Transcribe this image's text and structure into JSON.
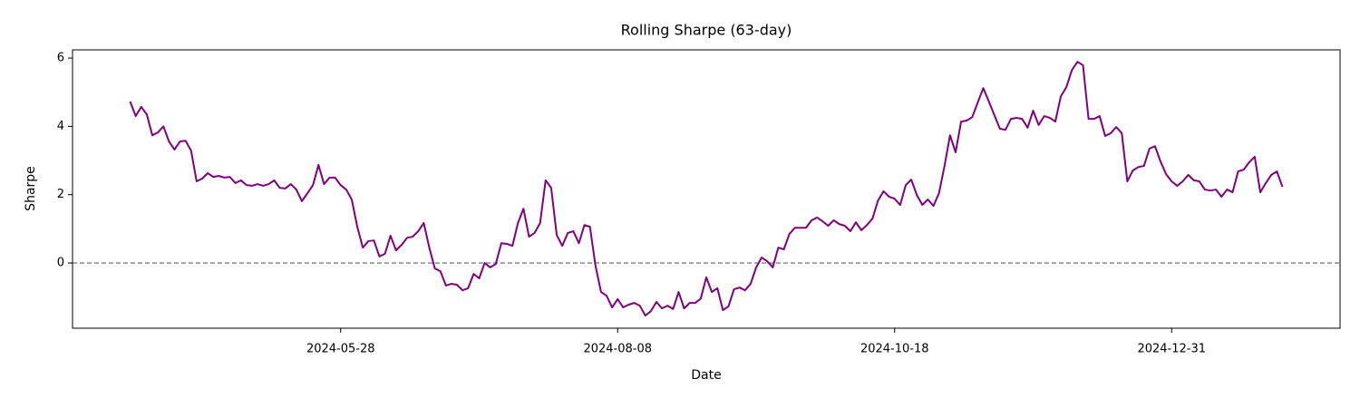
{
  "chart_data": {
    "type": "line",
    "title": "Rolling Sharpe (63-day)",
    "x_label": "Date",
    "y_label": "Sharpe",
    "categories": [
      null,
      null,
      null,
      null,
      null,
      null,
      null,
      null,
      null,
      null,
      null,
      null,
      null,
      null,
      null,
      null,
      null,
      null,
      null,
      null,
      null,
      null,
      null,
      null,
      null,
      null,
      null,
      null,
      null,
      null,
      null,
      null,
      null,
      null,
      null,
      null,
      null,
      null,
      "2024-05-28",
      null,
      null,
      null,
      null,
      null,
      null,
      null,
      null,
      null,
      null,
      null,
      null,
      null,
      null,
      null,
      null,
      null,
      null,
      null,
      null,
      null,
      null,
      null,
      null,
      null,
      null,
      null,
      null,
      null,
      null,
      null,
      null,
      null,
      null,
      null,
      null,
      null,
      null,
      null,
      null,
      null,
      null,
      null,
      null,
      null,
      null,
      null,
      null,
      null,
      "2024-08-08",
      null,
      null,
      null,
      null,
      null,
      null,
      null,
      null,
      null,
      null,
      null,
      null,
      null,
      null,
      null,
      null,
      null,
      null,
      null,
      null,
      null,
      null,
      null,
      null,
      null,
      null,
      null,
      null,
      null,
      null,
      null,
      null,
      null,
      null,
      null,
      null,
      null,
      null,
      null,
      null,
      null,
      null,
      null,
      null,
      null,
      null,
      null,
      null,
      null,
      "2024-10-18",
      null,
      null,
      null,
      null,
      null,
      null,
      null,
      null,
      null,
      null,
      null,
      null,
      null,
      null,
      null,
      null,
      null,
      null,
      null,
      null,
      null,
      null,
      null,
      null,
      null,
      null,
      null,
      null,
      null,
      null,
      null,
      null,
      null,
      null,
      null,
      null,
      null,
      null,
      null,
      null,
      null,
      null,
      null,
      null,
      null,
      null,
      null,
      null,
      null,
      "2024-12-31",
      null,
      null,
      null,
      null,
      null,
      null,
      null,
      null,
      null,
      null,
      null,
      null,
      null,
      null,
      null,
      null,
      null,
      null,
      null,
      null
    ],
    "series": [
      {
        "name": "Sharpe",
        "color": "#800080",
        "values": [
          4.73,
          4.3,
          4.57,
          4.35,
          3.74,
          3.82,
          4.0,
          3.56,
          3.32,
          3.56,
          3.58,
          3.29,
          2.39,
          2.47,
          2.63,
          2.52,
          2.55,
          2.5,
          2.52,
          2.34,
          2.42,
          2.28,
          2.26,
          2.31,
          2.26,
          2.31,
          2.42,
          2.2,
          2.18,
          2.31,
          2.15,
          1.81,
          2.04,
          2.28,
          2.87,
          2.31,
          2.5,
          2.5,
          2.28,
          2.15,
          1.86,
          1.06,
          0.45,
          0.64,
          0.66,
          0.19,
          0.27,
          0.8,
          0.37,
          0.53,
          0.74,
          0.77,
          0.93,
          1.17,
          0.45,
          -0.16,
          -0.24,
          -0.66,
          -0.61,
          -0.64,
          -0.8,
          -0.74,
          -0.32,
          -0.45,
          0.0,
          -0.13,
          -0.03,
          0.58,
          0.56,
          0.5,
          1.17,
          1.59,
          0.77,
          0.88,
          1.17,
          2.42,
          2.2,
          0.82,
          0.5,
          0.88,
          0.93,
          0.58,
          1.11,
          1.06,
          -0.08,
          -0.85,
          -0.96,
          -1.3,
          -1.06,
          -1.3,
          -1.22,
          -1.17,
          -1.25,
          -1.54,
          -1.41,
          -1.14,
          -1.33,
          -1.25,
          -1.35,
          -0.85,
          -1.33,
          -1.17,
          -1.17,
          -1.04,
          -0.42,
          -0.85,
          -0.74,
          -1.38,
          -1.27,
          -0.77,
          -0.72,
          -0.8,
          -0.61,
          -0.13,
          0.16,
          0.05,
          -0.13,
          0.45,
          0.4,
          0.85,
          1.03,
          1.03,
          1.03,
          1.25,
          1.33,
          1.22,
          1.09,
          1.25,
          1.14,
          1.09,
          0.93,
          1.19,
          0.96,
          1.11,
          1.3,
          1.83,
          2.1,
          1.94,
          1.88,
          1.7,
          2.28,
          2.44,
          1.99,
          1.7,
          1.86,
          1.67,
          2.04,
          2.84,
          3.74,
          3.24,
          4.14,
          4.17,
          4.27,
          4.7,
          5.12,
          4.73,
          4.33,
          3.93,
          3.9,
          4.22,
          4.25,
          4.22,
          3.96,
          4.46,
          4.04,
          4.3,
          4.25,
          4.14,
          4.88,
          5.15,
          5.65,
          5.89,
          5.79,
          4.22,
          4.22,
          4.3,
          3.72,
          3.8,
          3.98,
          3.8,
          2.39,
          2.71,
          2.81,
          2.84,
          3.35,
          3.42,
          2.97,
          2.6,
          2.39,
          2.26,
          2.39,
          2.58,
          2.42,
          2.39,
          2.15,
          2.12,
          2.15,
          1.94,
          2.15,
          2.07,
          2.68,
          2.73,
          2.95,
          3.11,
          2.07,
          2.34,
          2.58,
          2.68,
          2.23
        ]
      }
    ],
    "ylim": [
      -1.91,
      6.24
    ],
    "yticks": [
      0,
      2,
      4,
      6
    ],
    "hline": 0,
    "hline_color": "#808080",
    "grid": false
  }
}
